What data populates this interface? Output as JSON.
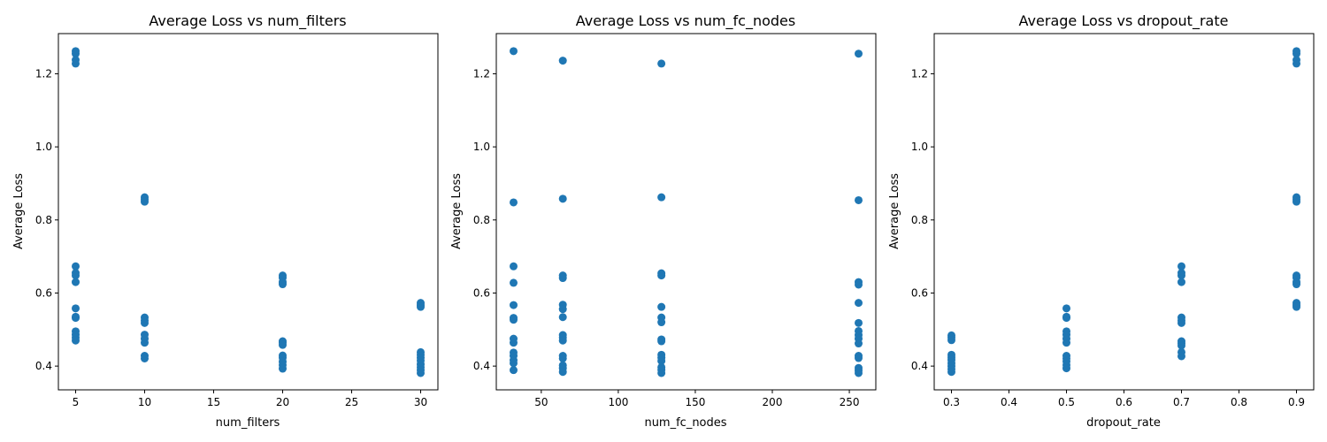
{
  "chart_data": [
    {
      "type": "scatter",
      "title": "Average Loss vs num_filters",
      "xlabel": "num_filters",
      "ylabel": "Average Loss",
      "xlim": [
        3.75,
        31.25
      ],
      "ylim": [
        0.335,
        1.31
      ],
      "xticks": [
        5,
        10,
        15,
        20,
        25,
        30
      ],
      "xtick_labels": [
        "5",
        "10",
        "15",
        "20",
        "25",
        "30"
      ],
      "yticks": [
        0.4,
        0.6,
        0.8,
        1.0,
        1.2
      ],
      "ytick_labels": [
        "0.4",
        "0.6",
        "0.8",
        "1.0",
        "1.2"
      ],
      "grid": false,
      "color": "#1f77b4",
      "points": [
        {
          "x": 5,
          "y": 1.262
        },
        {
          "x": 5,
          "y": 1.255
        },
        {
          "x": 5,
          "y": 1.238
        },
        {
          "x": 5,
          "y": 1.228
        },
        {
          "x": 5,
          "y": 0.673
        },
        {
          "x": 5,
          "y": 0.655
        },
        {
          "x": 5,
          "y": 0.648
        },
        {
          "x": 5,
          "y": 0.63
        },
        {
          "x": 5,
          "y": 0.558
        },
        {
          "x": 5,
          "y": 0.535
        },
        {
          "x": 5,
          "y": 0.532
        },
        {
          "x": 5,
          "y": 0.495
        },
        {
          "x": 5,
          "y": 0.486
        },
        {
          "x": 5,
          "y": 0.478
        },
        {
          "x": 5,
          "y": 0.47
        },
        {
          "x": 10,
          "y": 0.862
        },
        {
          "x": 10,
          "y": 0.856
        },
        {
          "x": 10,
          "y": 0.85
        },
        {
          "x": 10,
          "y": 0.533
        },
        {
          "x": 10,
          "y": 0.525
        },
        {
          "x": 10,
          "y": 0.518
        },
        {
          "x": 10,
          "y": 0.486
        },
        {
          "x": 10,
          "y": 0.475
        },
        {
          "x": 10,
          "y": 0.464
        },
        {
          "x": 10,
          "y": 0.428
        },
        {
          "x": 10,
          "y": 0.421
        },
        {
          "x": 20,
          "y": 0.648
        },
        {
          "x": 20,
          "y": 0.642
        },
        {
          "x": 20,
          "y": 0.63
        },
        {
          "x": 20,
          "y": 0.624
        },
        {
          "x": 20,
          "y": 0.468
        },
        {
          "x": 20,
          "y": 0.464
        },
        {
          "x": 20,
          "y": 0.458
        },
        {
          "x": 20,
          "y": 0.429
        },
        {
          "x": 20,
          "y": 0.423
        },
        {
          "x": 20,
          "y": 0.412
        },
        {
          "x": 20,
          "y": 0.403
        },
        {
          "x": 20,
          "y": 0.393
        },
        {
          "x": 30,
          "y": 0.573
        },
        {
          "x": 30,
          "y": 0.567
        },
        {
          "x": 30,
          "y": 0.562
        },
        {
          "x": 30,
          "y": 0.438
        },
        {
          "x": 30,
          "y": 0.431
        },
        {
          "x": 30,
          "y": 0.423
        },
        {
          "x": 30,
          "y": 0.415
        },
        {
          "x": 30,
          "y": 0.405
        },
        {
          "x": 30,
          "y": 0.397
        },
        {
          "x": 30,
          "y": 0.389
        },
        {
          "x": 30,
          "y": 0.381
        }
      ]
    },
    {
      "type": "scatter",
      "title": "Average Loss vs num_fc_nodes",
      "xlabel": "num_fc_nodes",
      "ylabel": "Average Loss",
      "xlim": [
        20.8,
        267.2
      ],
      "ylim": [
        0.335,
        1.31
      ],
      "xticks": [
        50,
        100,
        150,
        200,
        250
      ],
      "xtick_labels": [
        "50",
        "100",
        "150",
        "200",
        "250"
      ],
      "yticks": [
        0.4,
        0.6,
        0.8,
        1.0,
        1.2
      ],
      "ytick_labels": [
        "0.4",
        "0.6",
        "0.8",
        "1.0",
        "1.2"
      ],
      "grid": false,
      "color": "#1f77b4",
      "points": [
        {
          "x": 32,
          "y": 1.262
        },
        {
          "x": 32,
          "y": 0.848
        },
        {
          "x": 32,
          "y": 0.673
        },
        {
          "x": 32,
          "y": 0.628
        },
        {
          "x": 32,
          "y": 0.567
        },
        {
          "x": 32,
          "y": 0.532
        },
        {
          "x": 32,
          "y": 0.527
        },
        {
          "x": 32,
          "y": 0.475
        },
        {
          "x": 32,
          "y": 0.464
        },
        {
          "x": 32,
          "y": 0.437
        },
        {
          "x": 32,
          "y": 0.428
        },
        {
          "x": 32,
          "y": 0.416
        },
        {
          "x": 32,
          "y": 0.408
        },
        {
          "x": 32,
          "y": 0.389
        },
        {
          "x": 64,
          "y": 1.236
        },
        {
          "x": 64,
          "y": 0.858
        },
        {
          "x": 64,
          "y": 0.648
        },
        {
          "x": 64,
          "y": 0.641
        },
        {
          "x": 64,
          "y": 0.568
        },
        {
          "x": 64,
          "y": 0.556
        },
        {
          "x": 64,
          "y": 0.534
        },
        {
          "x": 64,
          "y": 0.485
        },
        {
          "x": 64,
          "y": 0.478
        },
        {
          "x": 64,
          "y": 0.47
        },
        {
          "x": 64,
          "y": 0.428
        },
        {
          "x": 64,
          "y": 0.421
        },
        {
          "x": 64,
          "y": 0.402
        },
        {
          "x": 64,
          "y": 0.394
        },
        {
          "x": 64,
          "y": 0.384
        },
        {
          "x": 128,
          "y": 1.228
        },
        {
          "x": 128,
          "y": 0.862
        },
        {
          "x": 128,
          "y": 0.654
        },
        {
          "x": 128,
          "y": 0.648
        },
        {
          "x": 128,
          "y": 0.562
        },
        {
          "x": 128,
          "y": 0.533
        },
        {
          "x": 128,
          "y": 0.52
        },
        {
          "x": 128,
          "y": 0.473
        },
        {
          "x": 128,
          "y": 0.468
        },
        {
          "x": 128,
          "y": 0.431
        },
        {
          "x": 128,
          "y": 0.423
        },
        {
          "x": 128,
          "y": 0.414
        },
        {
          "x": 128,
          "y": 0.397
        },
        {
          "x": 128,
          "y": 0.39
        },
        {
          "x": 128,
          "y": 0.381
        },
        {
          "x": 256,
          "y": 1.255
        },
        {
          "x": 256,
          "y": 0.854
        },
        {
          "x": 256,
          "y": 0.63
        },
        {
          "x": 256,
          "y": 0.623
        },
        {
          "x": 256,
          "y": 0.573
        },
        {
          "x": 256,
          "y": 0.518
        },
        {
          "x": 256,
          "y": 0.496
        },
        {
          "x": 256,
          "y": 0.485
        },
        {
          "x": 256,
          "y": 0.475
        },
        {
          "x": 256,
          "y": 0.462
        },
        {
          "x": 256,
          "y": 0.428
        },
        {
          "x": 256,
          "y": 0.422
        },
        {
          "x": 256,
          "y": 0.395
        },
        {
          "x": 256,
          "y": 0.388
        },
        {
          "x": 256,
          "y": 0.381
        }
      ]
    },
    {
      "type": "scatter",
      "title": "Average Loss vs dropout_rate",
      "xlabel": "dropout_rate",
      "ylabel": "Average Loss",
      "xlim": [
        0.27,
        0.93
      ],
      "ylim": [
        0.335,
        1.31
      ],
      "xticks": [
        0.3,
        0.4,
        0.5,
        0.6,
        0.7,
        0.8,
        0.9
      ],
      "xtick_labels": [
        "0.3",
        "0.4",
        "0.5",
        "0.6",
        "0.7",
        "0.8",
        "0.9"
      ],
      "yticks": [
        0.4,
        0.6,
        0.8,
        1.0,
        1.2
      ],
      "ytick_labels": [
        "0.4",
        "0.6",
        "0.8",
        "1.0",
        "1.2"
      ],
      "grid": false,
      "color": "#1f77b4",
      "points": [
        {
          "x": 0.3,
          "y": 0.484
        },
        {
          "x": 0.3,
          "y": 0.478
        },
        {
          "x": 0.3,
          "y": 0.471
        },
        {
          "x": 0.3,
          "y": 0.431
        },
        {
          "x": 0.3,
          "y": 0.424
        },
        {
          "x": 0.3,
          "y": 0.417
        },
        {
          "x": 0.3,
          "y": 0.408
        },
        {
          "x": 0.3,
          "y": 0.4
        },
        {
          "x": 0.3,
          "y": 0.392
        },
        {
          "x": 0.3,
          "y": 0.384
        },
        {
          "x": 0.5,
          "y": 0.558
        },
        {
          "x": 0.5,
          "y": 0.535
        },
        {
          "x": 0.5,
          "y": 0.532
        },
        {
          "x": 0.5,
          "y": 0.495
        },
        {
          "x": 0.5,
          "y": 0.486
        },
        {
          "x": 0.5,
          "y": 0.475
        },
        {
          "x": 0.5,
          "y": 0.464
        },
        {
          "x": 0.5,
          "y": 0.428
        },
        {
          "x": 0.5,
          "y": 0.421
        },
        {
          "x": 0.5,
          "y": 0.413
        },
        {
          "x": 0.5,
          "y": 0.403
        },
        {
          "x": 0.5,
          "y": 0.394
        },
        {
          "x": 0.7,
          "y": 0.673
        },
        {
          "x": 0.7,
          "y": 0.655
        },
        {
          "x": 0.7,
          "y": 0.648
        },
        {
          "x": 0.7,
          "y": 0.63
        },
        {
          "x": 0.7,
          "y": 0.533
        },
        {
          "x": 0.7,
          "y": 0.525
        },
        {
          "x": 0.7,
          "y": 0.518
        },
        {
          "x": 0.7,
          "y": 0.468
        },
        {
          "x": 0.7,
          "y": 0.462
        },
        {
          "x": 0.7,
          "y": 0.456
        },
        {
          "x": 0.7,
          "y": 0.438
        },
        {
          "x": 0.7,
          "y": 0.427
        },
        {
          "x": 0.9,
          "y": 1.262
        },
        {
          "x": 0.9,
          "y": 1.255
        },
        {
          "x": 0.9,
          "y": 1.238
        },
        {
          "x": 0.9,
          "y": 1.228
        },
        {
          "x": 0.9,
          "y": 0.862
        },
        {
          "x": 0.9,
          "y": 0.856
        },
        {
          "x": 0.9,
          "y": 0.85
        },
        {
          "x": 0.9,
          "y": 0.648
        },
        {
          "x": 0.9,
          "y": 0.642
        },
        {
          "x": 0.9,
          "y": 0.63
        },
        {
          "x": 0.9,
          "y": 0.624
        },
        {
          "x": 0.9,
          "y": 0.573
        },
        {
          "x": 0.9,
          "y": 0.567
        },
        {
          "x": 0.9,
          "y": 0.562
        }
      ]
    }
  ]
}
